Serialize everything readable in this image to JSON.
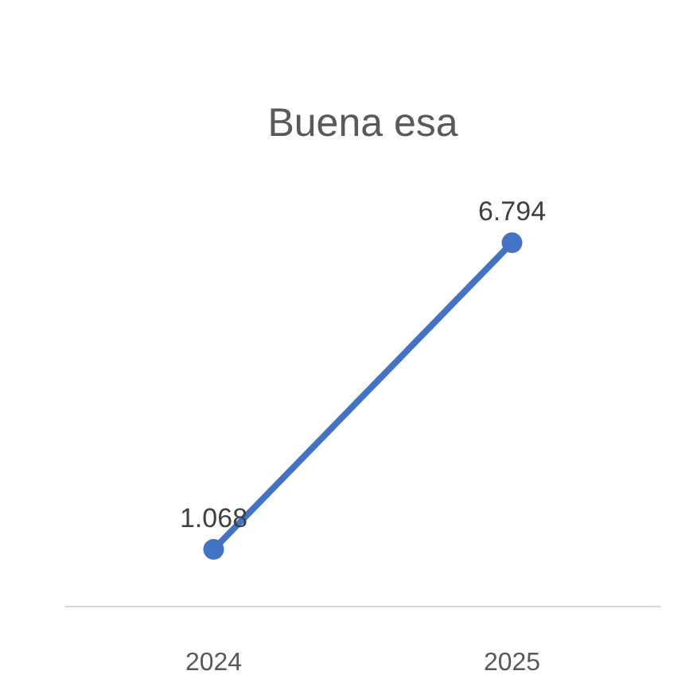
{
  "chart_data": {
    "type": "line",
    "title": "Buena esa",
    "categories": [
      "2024",
      "2025"
    ],
    "series": [
      {
        "color": "#4472c4",
        "values": [
          1068,
          6794
        ],
        "value_labels": [
          "1.068",
          "6.794"
        ]
      }
    ],
    "grid": false,
    "marker": "circle",
    "line_style": "solid"
  }
}
